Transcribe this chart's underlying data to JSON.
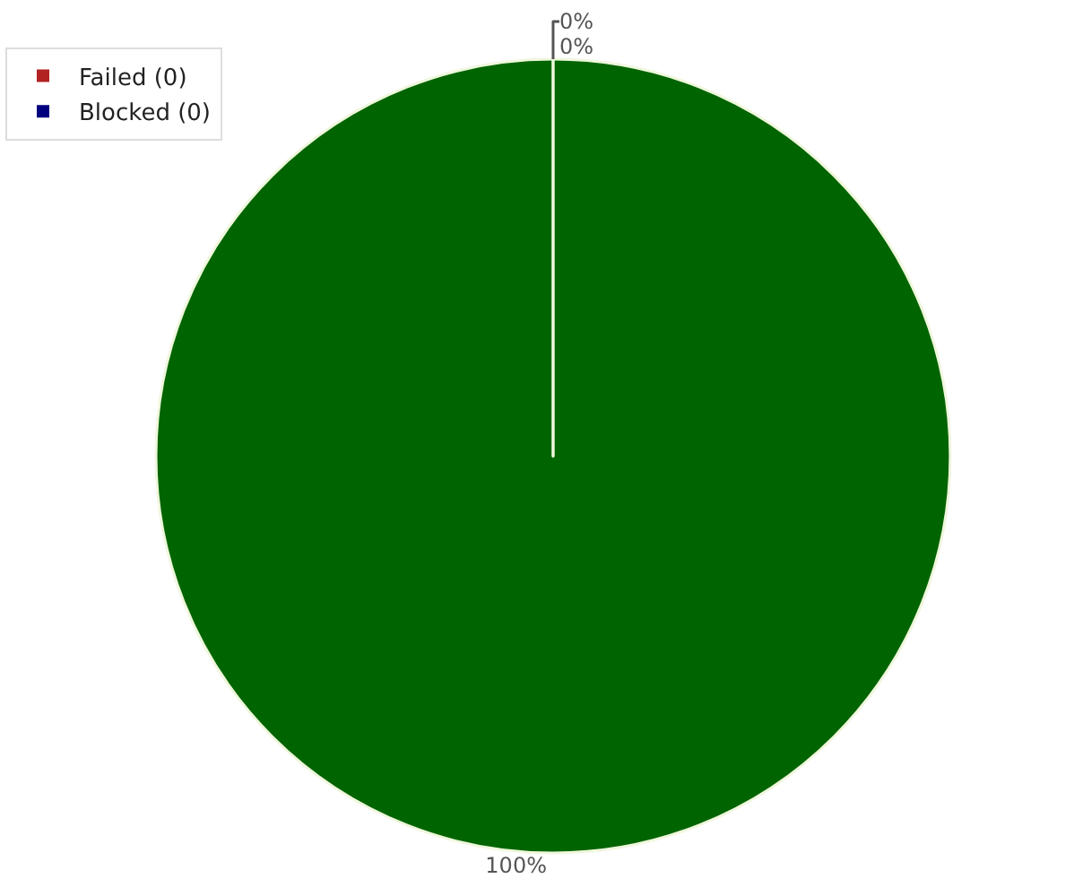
{
  "chart_data": {
    "type": "pie",
    "categories": [
      null,
      "Failed (0)",
      "Blocked (0)"
    ],
    "values": [
      100,
      0,
      0
    ],
    "colors": [
      "#006400",
      "#b22222",
      "#00007f"
    ],
    "value_labels": [
      "100%",
      "0%",
      "0%"
    ],
    "legend": "top left"
  }
}
